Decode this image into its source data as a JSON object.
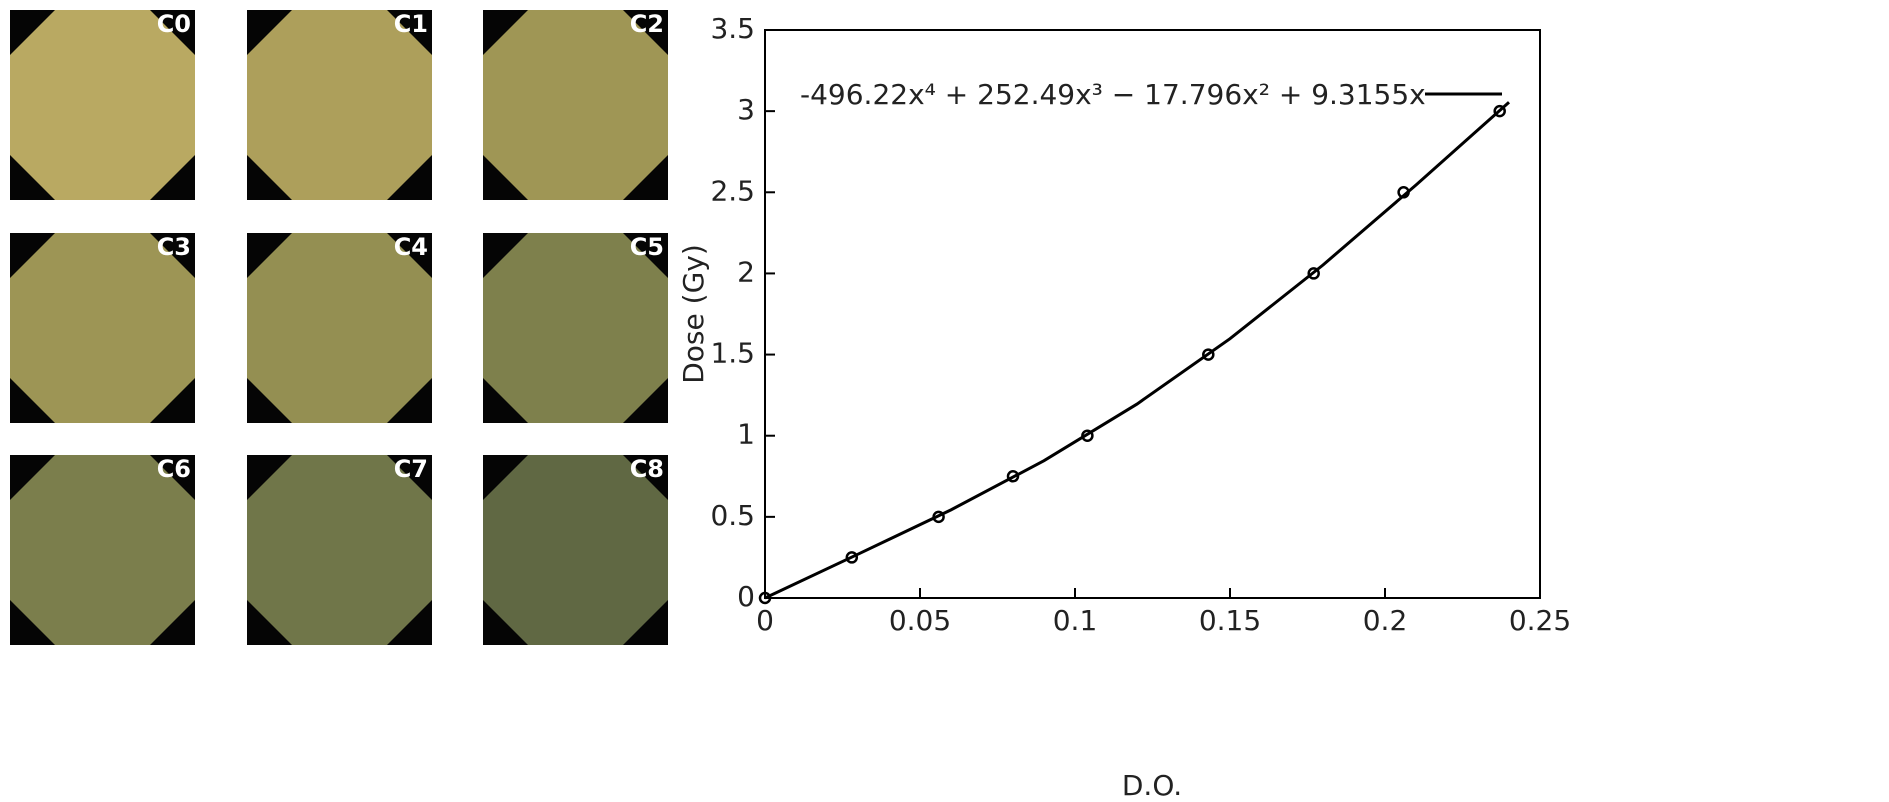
{
  "films": [
    {
      "label": "C0",
      "color": "#b9a962"
    },
    {
      "label": "C1",
      "color": "#ad9f5b"
    },
    {
      "label": "C2",
      "color": "#9f9655"
    },
    {
      "label": "C3",
      "color": "#9d9555"
    },
    {
      "label": "C4",
      "color": "#948f52"
    },
    {
      "label": "C5",
      "color": "#7e804c"
    },
    {
      "label": "C6",
      "color": "#7b7e4c"
    },
    {
      "label": "C7",
      "color": "#707649"
    },
    {
      "label": "C8",
      "color": "#606843"
    }
  ],
  "chart_data": {
    "type": "scatter",
    "xlabel": "D.O.",
    "ylabel": "Dose (Gy)",
    "xlim": [
      0,
      0.25
    ],
    "xticks": [
      0,
      0.05,
      0.1,
      0.15,
      0.2,
      0.25
    ],
    "ylim": [
      0,
      3.5
    ],
    "yticks": [
      0,
      0.5,
      1,
      1.5,
      2,
      2.5,
      3,
      3.5
    ],
    "series": [
      {
        "kind": "points",
        "color": "#000000",
        "x": [
          0,
          0.028,
          0.056,
          0.08,
          0.104,
          0.143,
          0.177,
          0.206,
          0.237
        ],
        "values": [
          0,
          0.25,
          0.5,
          0.75,
          1,
          1.5,
          2,
          2.5,
          3
        ]
      },
      {
        "kind": "line",
        "name": "-496.22x⁴ + 252.49x³ − 17.796x² + 9.3155x",
        "color": "#000000",
        "x": [
          0,
          0.03,
          0.06,
          0.09,
          0.12,
          0.15,
          0.18,
          0.21,
          0.24
        ],
        "values": [
          0,
          0.27,
          0.543,
          0.846,
          1.195,
          1.598,
          2.052,
          2.545,
          3.055
        ]
      }
    ]
  }
}
